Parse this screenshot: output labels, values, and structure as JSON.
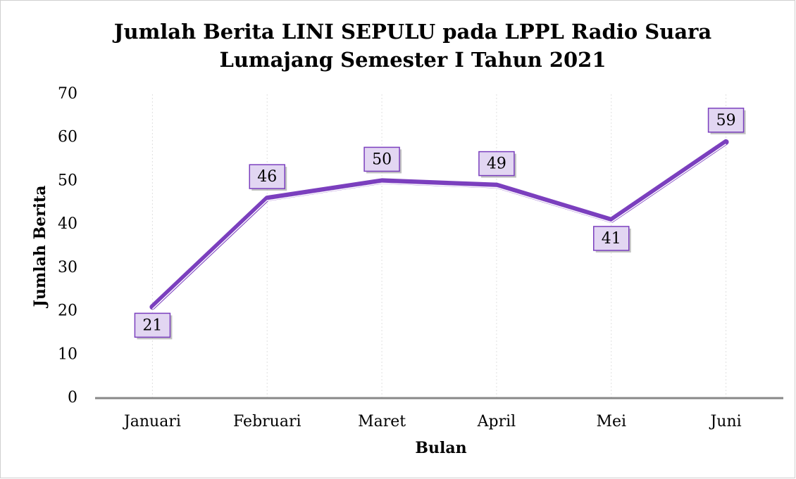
{
  "chart_data": {
    "type": "line",
    "title": [
      "Jumlah Berita LINI SEPULU pada LPPL Radio Suara",
      "Lumajang Semester I Tahun 2021"
    ],
    "x_label": "Bulan",
    "y_label": "Jumlah Berita",
    "categories": [
      "Januari",
      "Februari",
      "Maret",
      "April",
      "Mei",
      "Juni"
    ],
    "series": [
      {
        "name": "Jumlah Berita",
        "color": "#7b3fbe",
        "values": [
          21,
          46,
          50,
          49,
          41,
          59
        ]
      }
    ],
    "label_positions": [
      "below",
      "above",
      "above",
      "above",
      "below",
      "above"
    ],
    "ylim": [
      0,
      70
    ],
    "yticks": [
      0,
      10,
      20,
      30,
      40,
      50,
      60,
      70
    ],
    "grid": true
  }
}
